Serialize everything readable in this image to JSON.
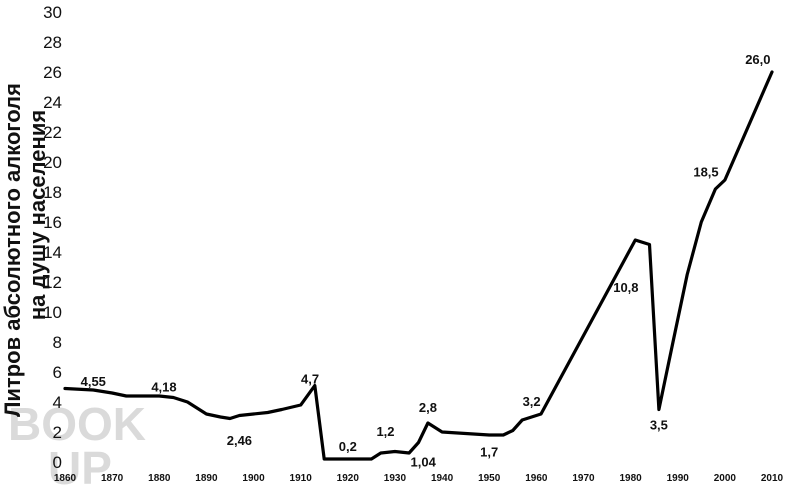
{
  "chart_data": {
    "type": "line",
    "title": "",
    "ylabel_lines": [
      "Литров абсолютного алкоголя",
      "на душу населения"
    ],
    "xlabel": "",
    "ylim": [
      0,
      30
    ],
    "xlim": [
      1860,
      2012
    ],
    "yticks": [
      0,
      2,
      4,
      6,
      8,
      10,
      12,
      14,
      16,
      18,
      20,
      22,
      24,
      26,
      28,
      30
    ],
    "xticks": [
      1860,
      1870,
      1880,
      1890,
      1900,
      1910,
      1920,
      1930,
      1940,
      1950,
      1960,
      1970,
      1980,
      1990,
      2000,
      2010
    ],
    "grid": false,
    "legend": "none",
    "line_color": "#000000",
    "series": [
      {
        "x": [
          1860,
          1866,
          1870,
          1873,
          1876,
          1880,
          1883,
          1886,
          1890,
          1893,
          1895,
          1897,
          1900,
          1903,
          1906,
          1910,
          1913,
          1915,
          1920,
          1925,
          1927,
          1930,
          1933,
          1935,
          1937,
          1940,
          1945,
          1950,
          1953,
          1955,
          1957,
          1959,
          1961,
          1981,
          1984,
          1986,
          1989,
          1992,
          1995,
          1998,
          2000,
          2010
        ],
        "y": [
          4.9,
          4.8,
          4.6,
          4.4,
          4.4,
          4.4,
          4.3,
          4.0,
          3.2,
          3.0,
          2.9,
          3.1,
          3.2,
          3.3,
          3.5,
          3.8,
          5.1,
          0.2,
          0.2,
          0.2,
          0.6,
          0.7,
          0.6,
          1.3,
          2.6,
          2.0,
          1.9,
          1.8,
          1.8,
          2.1,
          2.8,
          3.0,
          3.2,
          14.8,
          14.5,
          3.5,
          8.0,
          12.5,
          16.0,
          18.2,
          18.8,
          26.0
        ]
      }
    ],
    "annotations": [
      {
        "x": 1866,
        "y": 4.55,
        "text": "4,55",
        "anchor": "above"
      },
      {
        "x": 1881,
        "y": 4.18,
        "text": "4,18",
        "anchor": "above"
      },
      {
        "x": 1897,
        "y": 2.46,
        "text": "2,46",
        "anchor": "below"
      },
      {
        "x": 1912,
        "y": 4.7,
        "text": "4,7",
        "anchor": "above"
      },
      {
        "x": 1920,
        "y": 0.2,
        "text": "0,2",
        "anchor": "above"
      },
      {
        "x": 1928,
        "y": 1.2,
        "text": "1,2",
        "anchor": "above"
      },
      {
        "x": 1936,
        "y": 1.04,
        "text": "1,04",
        "anchor": "below"
      },
      {
        "x": 1937,
        "y": 2.8,
        "text": "2,8",
        "anchor": "above"
      },
      {
        "x": 1950,
        "y": 1.7,
        "text": "1,7",
        "anchor": "below"
      },
      {
        "x": 1959,
        "y": 3.2,
        "text": "3,2",
        "anchor": "above"
      },
      {
        "x": 1979,
        "y": 10.8,
        "text": "10,8",
        "anchor": "above"
      },
      {
        "x": 1986,
        "y": 3.5,
        "text": "3,5",
        "anchor": "below"
      },
      {
        "x": 1996,
        "y": 18.5,
        "text": "18,5",
        "anchor": "above"
      },
      {
        "x": 2007,
        "y": 26.0,
        "text": "26,0",
        "anchor": "above"
      }
    ],
    "watermark_text": "BOOK UP"
  }
}
